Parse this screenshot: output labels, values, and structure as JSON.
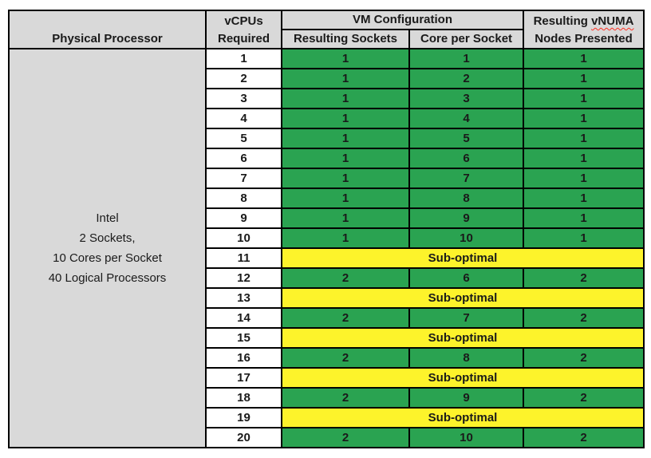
{
  "table": {
    "header": {
      "physical_processor": "Physical Processor",
      "vcpus_required_line1": "vCPUs",
      "vcpus_required_line2": "Required",
      "vm_configuration": "VM Configuration",
      "resulting_sockets": "Resulting Sockets",
      "core_per_socket": "Core per Socket",
      "vnuma_line1_prefix": "Resulting ",
      "vnuma_line1_word": "vNUMA",
      "vnuma_line2": "Nodes Presented"
    },
    "processor_info": {
      "lines": [
        "Intel",
        "2 Sockets,",
        "10 Cores per Socket",
        "40 Logical Processors"
      ]
    },
    "suboptimal_label": "Sub-optimal",
    "rows": [
      {
        "vcpus": "1",
        "status": "optimal",
        "sockets": "1",
        "cores": "1",
        "vnuma": "1"
      },
      {
        "vcpus": "2",
        "status": "optimal",
        "sockets": "1",
        "cores": "2",
        "vnuma": "1"
      },
      {
        "vcpus": "3",
        "status": "optimal",
        "sockets": "1",
        "cores": "3",
        "vnuma": "1"
      },
      {
        "vcpus": "4",
        "status": "optimal",
        "sockets": "1",
        "cores": "4",
        "vnuma": "1"
      },
      {
        "vcpus": "5",
        "status": "optimal",
        "sockets": "1",
        "cores": "5",
        "vnuma": "1"
      },
      {
        "vcpus": "6",
        "status": "optimal",
        "sockets": "1",
        "cores": "6",
        "vnuma": "1"
      },
      {
        "vcpus": "7",
        "status": "optimal",
        "sockets": "1",
        "cores": "7",
        "vnuma": "1"
      },
      {
        "vcpus": "8",
        "status": "optimal",
        "sockets": "1",
        "cores": "8",
        "vnuma": "1"
      },
      {
        "vcpus": "9",
        "status": "optimal",
        "sockets": "1",
        "cores": "9",
        "vnuma": "1"
      },
      {
        "vcpus": "10",
        "status": "optimal",
        "sockets": "1",
        "cores": "10",
        "vnuma": "1"
      },
      {
        "vcpus": "11",
        "status": "suboptimal"
      },
      {
        "vcpus": "12",
        "status": "optimal",
        "sockets": "2",
        "cores": "6",
        "vnuma": "2"
      },
      {
        "vcpus": "13",
        "status": "suboptimal"
      },
      {
        "vcpus": "14",
        "status": "optimal",
        "sockets": "2",
        "cores": "7",
        "vnuma": "2"
      },
      {
        "vcpus": "15",
        "status": "suboptimal"
      },
      {
        "vcpus": "16",
        "status": "optimal",
        "sockets": "2",
        "cores": "8",
        "vnuma": "2"
      },
      {
        "vcpus": "17",
        "status": "suboptimal"
      },
      {
        "vcpus": "18",
        "status": "optimal",
        "sockets": "2",
        "cores": "9",
        "vnuma": "2"
      },
      {
        "vcpus": "19",
        "status": "suboptimal"
      },
      {
        "vcpus": "20",
        "status": "optimal",
        "sockets": "2",
        "cores": "10",
        "vnuma": "2"
      }
    ]
  },
  "colors": {
    "optimal_green": "#2aa351",
    "suboptimal_yellow": "#fdf32b",
    "header_gray": "#d9d9d9",
    "grid_black": "#000000",
    "spellcheck_squiggle_red": "#ff2d1f"
  }
}
